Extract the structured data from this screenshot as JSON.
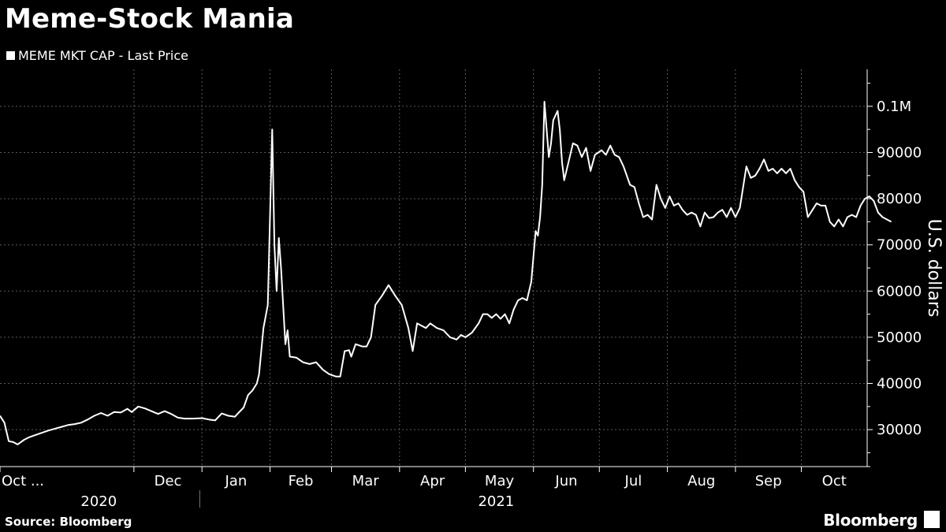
{
  "header": {
    "title": "Meme-Stock Mania"
  },
  "legend": {
    "label": "MEME MKT CAP - Last Price"
  },
  "footer": {
    "source": "Source: Bloomberg",
    "brand": "Bloomberg"
  },
  "colors": {
    "background": "#000000",
    "line": "#ffffff",
    "grid": "#5a5a5a"
  },
  "icons": {
    "brand_mark": "bloomberg-terminal-icon"
  },
  "chart_data": {
    "type": "line",
    "ylabel": "U.S. dollars",
    "ylim": [
      22000,
      108000
    ],
    "yticks": [
      {
        "value": 30000,
        "label": "30000"
      },
      {
        "value": 40000,
        "label": "40000"
      },
      {
        "value": 50000,
        "label": "50000"
      },
      {
        "value": 60000,
        "label": "60000"
      },
      {
        "value": 70000,
        "label": "70000"
      },
      {
        "value": 80000,
        "label": "80000"
      },
      {
        "value": 90000,
        "label": "90000"
      },
      {
        "value": 100000,
        "label": "0.1M"
      }
    ],
    "xlim": [
      "2020-10-01",
      "2021-10-31"
    ],
    "xticks": [
      {
        "date": "2020-10-01",
        "label": "Oct ..."
      },
      {
        "date": "2020-12-01",
        "label": "Dec"
      },
      {
        "date": "2021-01-01",
        "label": "Jan"
      },
      {
        "date": "2021-02-01",
        "label": "Feb"
      },
      {
        "date": "2021-03-01",
        "label": "Mar"
      },
      {
        "date": "2021-04-01",
        "label": "Apr"
      },
      {
        "date": "2021-05-01",
        "label": "May"
      },
      {
        "date": "2021-06-01",
        "label": "Jun"
      },
      {
        "date": "2021-07-01",
        "label": "Jul"
      },
      {
        "date": "2021-08-01",
        "label": "Aug"
      },
      {
        "date": "2021-09-01",
        "label": "Sep"
      },
      {
        "date": "2021-10-01",
        "label": "Oct"
      }
    ],
    "years": [
      {
        "label": "2020",
        "center": "2020-11-15"
      },
      {
        "label": "2021",
        "center": "2021-05-15"
      }
    ],
    "year_separator": "2020-12-31",
    "grid": true,
    "legend_position": "top-left",
    "series": [
      {
        "name": "MEME MKT CAP - Last Price",
        "points": [
          [
            "2020-10-01",
            33000
          ],
          [
            "2020-10-03",
            31500
          ],
          [
            "2020-10-05",
            27500
          ],
          [
            "2020-10-07",
            27300
          ],
          [
            "2020-10-09",
            26800
          ],
          [
            "2020-10-12",
            27800
          ],
          [
            "2020-10-14",
            28300
          ],
          [
            "2020-10-17",
            28800
          ],
          [
            "2020-10-20",
            29300
          ],
          [
            "2020-10-23",
            29800
          ],
          [
            "2020-10-26",
            30200
          ],
          [
            "2020-10-29",
            30600
          ],
          [
            "2020-11-01",
            31000
          ],
          [
            "2020-11-04",
            31200
          ],
          [
            "2020-11-07",
            31500
          ],
          [
            "2020-11-10",
            32200
          ],
          [
            "2020-11-13",
            33000
          ],
          [
            "2020-11-16",
            33600
          ],
          [
            "2020-11-19",
            33000
          ],
          [
            "2020-11-22",
            33800
          ],
          [
            "2020-11-25",
            33700
          ],
          [
            "2020-11-28",
            34500
          ],
          [
            "2020-11-30",
            33800
          ],
          [
            "2020-12-03",
            35000
          ],
          [
            "2020-12-06",
            34600
          ],
          [
            "2020-12-09",
            34000
          ],
          [
            "2020-12-12",
            33400
          ],
          [
            "2020-12-15",
            34000
          ],
          [
            "2020-12-18",
            33400
          ],
          [
            "2020-12-21",
            32600
          ],
          [
            "2020-12-24",
            32400
          ],
          [
            "2020-12-28",
            32400
          ],
          [
            "2021-01-01",
            32500
          ],
          [
            "2021-01-04",
            32200
          ],
          [
            "2021-01-07",
            32000
          ],
          [
            "2021-01-10",
            33500
          ],
          [
            "2021-01-13",
            33000
          ],
          [
            "2021-01-16",
            32800
          ],
          [
            "2021-01-18",
            33800
          ],
          [
            "2021-01-20",
            34800
          ],
          [
            "2021-01-22",
            37500
          ],
          [
            "2021-01-24",
            38500
          ],
          [
            "2021-01-26",
            40000
          ],
          [
            "2021-01-27",
            42000
          ],
          [
            "2021-01-29",
            52000
          ],
          [
            "2021-01-31",
            57000
          ],
          [
            "2021-02-02",
            95000
          ],
          [
            "2021-02-03",
            70000
          ],
          [
            "2021-02-04",
            60000
          ],
          [
            "2021-02-05",
            71500
          ],
          [
            "2021-02-06",
            65000
          ],
          [
            "2021-02-08",
            48500
          ],
          [
            "2021-02-09",
            51500
          ],
          [
            "2021-02-10",
            45800
          ],
          [
            "2021-02-13",
            45600
          ],
          [
            "2021-02-16",
            44600
          ],
          [
            "2021-02-19",
            44200
          ],
          [
            "2021-02-22",
            44600
          ],
          [
            "2021-02-25",
            43000
          ],
          [
            "2021-02-28",
            42000
          ],
          [
            "2021-03-03",
            41500
          ],
          [
            "2021-03-05",
            41500
          ],
          [
            "2021-03-07",
            47000
          ],
          [
            "2021-03-09",
            47200
          ],
          [
            "2021-03-10",
            45800
          ],
          [
            "2021-03-12",
            48500
          ],
          [
            "2021-03-15",
            48000
          ],
          [
            "2021-03-17",
            48000
          ],
          [
            "2021-03-19",
            50000
          ],
          [
            "2021-03-21",
            57000
          ],
          [
            "2021-03-24",
            59000
          ],
          [
            "2021-03-27",
            61300
          ],
          [
            "2021-03-30",
            59000
          ],
          [
            "2021-04-02",
            57000
          ],
          [
            "2021-04-05",
            52000
          ],
          [
            "2021-04-07",
            47000
          ],
          [
            "2021-04-09",
            53000
          ],
          [
            "2021-04-11",
            52500
          ],
          [
            "2021-04-13",
            52000
          ],
          [
            "2021-04-15",
            53000
          ],
          [
            "2021-04-18",
            52000
          ],
          [
            "2021-04-21",
            51500
          ],
          [
            "2021-04-24",
            50000
          ],
          [
            "2021-04-27",
            49500
          ],
          [
            "2021-04-29",
            50500
          ],
          [
            "2021-05-01",
            50000
          ],
          [
            "2021-05-04",
            51000
          ],
          [
            "2021-05-07",
            53000
          ],
          [
            "2021-05-09",
            55000
          ],
          [
            "2021-05-11",
            55000
          ],
          [
            "2021-05-13",
            54200
          ],
          [
            "2021-05-15",
            55000
          ],
          [
            "2021-05-17",
            54000
          ],
          [
            "2021-05-19",
            55000
          ],
          [
            "2021-05-21",
            53000
          ],
          [
            "2021-05-23",
            56000
          ],
          [
            "2021-05-25",
            58000
          ],
          [
            "2021-05-27",
            58500
          ],
          [
            "2021-05-29",
            58000
          ],
          [
            "2021-05-31",
            62000
          ],
          [
            "2021-06-02",
            73000
          ],
          [
            "2021-06-03",
            72000
          ],
          [
            "2021-06-04",
            76000
          ],
          [
            "2021-06-05",
            83000
          ],
          [
            "2021-06-06",
            101000
          ],
          [
            "2021-06-07",
            95000
          ],
          [
            "2021-06-08",
            89000
          ],
          [
            "2021-06-09",
            92000
          ],
          [
            "2021-06-10",
            97000
          ],
          [
            "2021-06-12",
            99000
          ],
          [
            "2021-06-13",
            95000
          ],
          [
            "2021-06-14",
            88000
          ],
          [
            "2021-06-15",
            84000
          ],
          [
            "2021-06-17",
            88000
          ],
          [
            "2021-06-19",
            92000
          ],
          [
            "2021-06-21",
            91500
          ],
          [
            "2021-06-23",
            89000
          ],
          [
            "2021-06-25",
            91000
          ],
          [
            "2021-06-27",
            86000
          ],
          [
            "2021-06-29",
            89500
          ],
          [
            "2021-07-02",
            90500
          ],
          [
            "2021-07-04",
            89500
          ],
          [
            "2021-07-06",
            91500
          ],
          [
            "2021-07-08",
            89500
          ],
          [
            "2021-07-10",
            89000
          ],
          [
            "2021-07-12",
            87000
          ],
          [
            "2021-07-15",
            83000
          ],
          [
            "2021-07-17",
            82500
          ],
          [
            "2021-07-19",
            79000
          ],
          [
            "2021-07-21",
            76000
          ],
          [
            "2021-07-23",
            76500
          ],
          [
            "2021-07-25",
            75500
          ],
          [
            "2021-07-27",
            83000
          ],
          [
            "2021-07-29",
            80000
          ],
          [
            "2021-07-31",
            78000
          ],
          [
            "2021-08-02",
            80500
          ],
          [
            "2021-08-04",
            78500
          ],
          [
            "2021-08-06",
            79000
          ],
          [
            "2021-08-08",
            77500
          ],
          [
            "2021-08-10",
            76500
          ],
          [
            "2021-08-12",
            77000
          ],
          [
            "2021-08-14",
            76500
          ],
          [
            "2021-08-16",
            74000
          ],
          [
            "2021-08-18",
            77000
          ],
          [
            "2021-08-20",
            75800
          ],
          [
            "2021-08-22",
            76000
          ],
          [
            "2021-08-24",
            77000
          ],
          [
            "2021-08-26",
            77600
          ],
          [
            "2021-08-28",
            76000
          ],
          [
            "2021-08-30",
            78000
          ],
          [
            "2021-09-01",
            76000
          ],
          [
            "2021-09-03",
            78000
          ],
          [
            "2021-09-06",
            87000
          ],
          [
            "2021-09-08",
            84500
          ],
          [
            "2021-09-10",
            85000
          ],
          [
            "2021-09-12",
            86500
          ],
          [
            "2021-09-14",
            88500
          ],
          [
            "2021-09-16",
            86000
          ],
          [
            "2021-09-18",
            86500
          ],
          [
            "2021-09-20",
            85500
          ],
          [
            "2021-09-22",
            86500
          ],
          [
            "2021-09-24",
            85500
          ],
          [
            "2021-09-26",
            86500
          ],
          [
            "2021-09-28",
            84000
          ],
          [
            "2021-09-30",
            82500
          ],
          [
            "2021-10-02",
            81500
          ],
          [
            "2021-10-04",
            76000
          ],
          [
            "2021-10-06",
            77500
          ],
          [
            "2021-10-08",
            79000
          ],
          [
            "2021-10-10",
            78500
          ],
          [
            "2021-10-12",
            78500
          ],
          [
            "2021-10-14",
            75000
          ],
          [
            "2021-10-16",
            74000
          ],
          [
            "2021-10-18",
            75500
          ],
          [
            "2021-10-20",
            74000
          ],
          [
            "2021-10-22",
            76000
          ],
          [
            "2021-10-24",
            76500
          ],
          [
            "2021-10-26",
            76000
          ],
          [
            "2021-10-28",
            78500
          ],
          [
            "2021-10-30",
            80000
          ],
          [
            "2021-11-01",
            80500
          ],
          [
            "2021-11-03",
            79500
          ],
          [
            "2021-11-05",
            77000
          ],
          [
            "2021-11-07",
            76000
          ],
          [
            "2021-11-09",
            75500
          ],
          [
            "2021-11-11",
            75000
          ]
        ]
      }
    ]
  }
}
